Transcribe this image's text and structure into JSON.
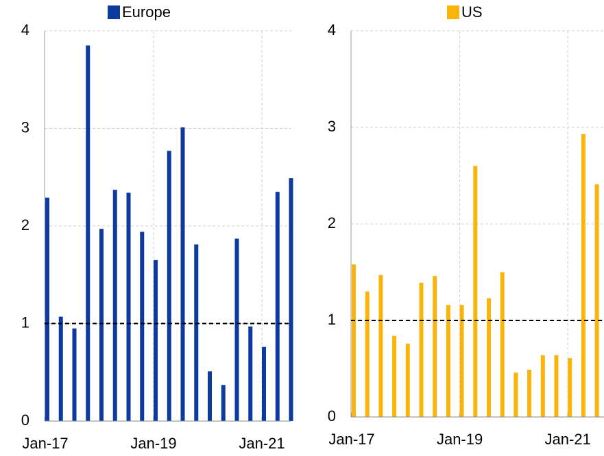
{
  "chart_data": [
    {
      "type": "bar",
      "categories": [
        "Jan-17",
        null,
        null,
        null,
        null,
        null,
        null,
        null,
        "Jan-19",
        null,
        null,
        null,
        null,
        null,
        null,
        null,
        "Jan-21",
        null,
        null
      ],
      "series": [
        {
          "name": "Europe",
          "color": "#0d3a9e",
          "values": [
            2.29,
            1.07,
            0.95,
            3.85,
            1.97,
            2.37,
            2.34,
            1.94,
            1.65,
            2.77,
            3.01,
            1.81,
            0.51,
            0.37,
            1.87,
            0.97,
            0.76,
            2.35,
            2.49
          ]
        }
      ],
      "ylim": [
        0,
        4
      ],
      "yticks": [
        0,
        1,
        2,
        3,
        4
      ],
      "grid": true,
      "reference_line": 1,
      "legend": "top"
    },
    {
      "type": "bar",
      "categories": [
        "Jan-17",
        null,
        null,
        null,
        null,
        null,
        null,
        null,
        "Jan-19",
        null,
        null,
        null,
        null,
        null,
        null,
        null,
        "Jan-21",
        null,
        null
      ],
      "series": [
        {
          "name": "US",
          "color": "#fbb40a",
          "values": [
            1.58,
            1.3,
            1.47,
            0.84,
            0.76,
            1.39,
            1.46,
            1.16,
            1.16,
            2.6,
            1.23,
            1.5,
            0.46,
            0.49,
            0.64,
            0.64,
            0.61,
            2.93,
            2.41
          ]
        }
      ],
      "ylim": [
        0,
        4
      ],
      "yticks": [
        0,
        1,
        2,
        3,
        4
      ],
      "grid": true,
      "reference_line": 1,
      "legend": "top"
    }
  ]
}
